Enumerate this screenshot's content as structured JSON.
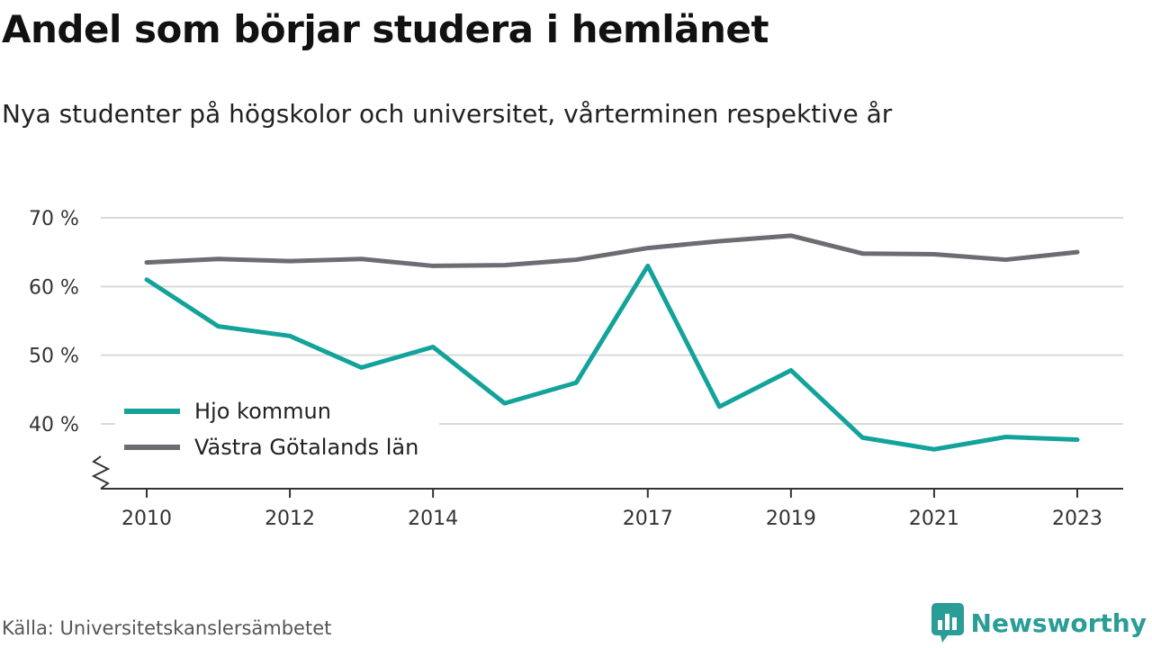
{
  "title": "Andel som börjar studera i hemlänet",
  "subtitle": "Nya studenter på högskolor och universitet, vårterminen respektive år",
  "source": "Källa: Universitetskanslersämbetet",
  "brand": "Newsworthy",
  "chart_data": {
    "type": "line",
    "x": [
      2010,
      2011,
      2012,
      2013,
      2014,
      2015,
      2016,
      2017,
      2018,
      2019,
      2020,
      2021,
      2022,
      2023
    ],
    "x_ticks": [
      2010,
      2012,
      2014,
      2017,
      2019,
      2021,
      2023
    ],
    "x_tick_labels": [
      "2010",
      "2012",
      "2014",
      "2017",
      "2019",
      "2021",
      "2023"
    ],
    "y_ticks": [
      40,
      50,
      60,
      70
    ],
    "y_tick_labels": [
      "40 %",
      "50 %",
      "60 %",
      "70 %"
    ],
    "ylim": [
      31,
      70
    ],
    "axis_break": true,
    "grid": true,
    "legend_position": "bottom-left",
    "series": [
      {
        "name": "Hjo kommun",
        "color": "#13a39a",
        "values": [
          61,
          54.2,
          52.8,
          48.2,
          51.2,
          43,
          46,
          63,
          42.5,
          47.8,
          38,
          36.3,
          38.1,
          37.7
        ]
      },
      {
        "name": "Västra Götalands län",
        "color": "#6d6c73",
        "values": [
          63.5,
          64,
          63.7,
          64,
          63,
          63.1,
          63.9,
          65.6,
          66.6,
          67.4,
          64.8,
          64.7,
          63.9,
          65
        ]
      }
    ]
  }
}
